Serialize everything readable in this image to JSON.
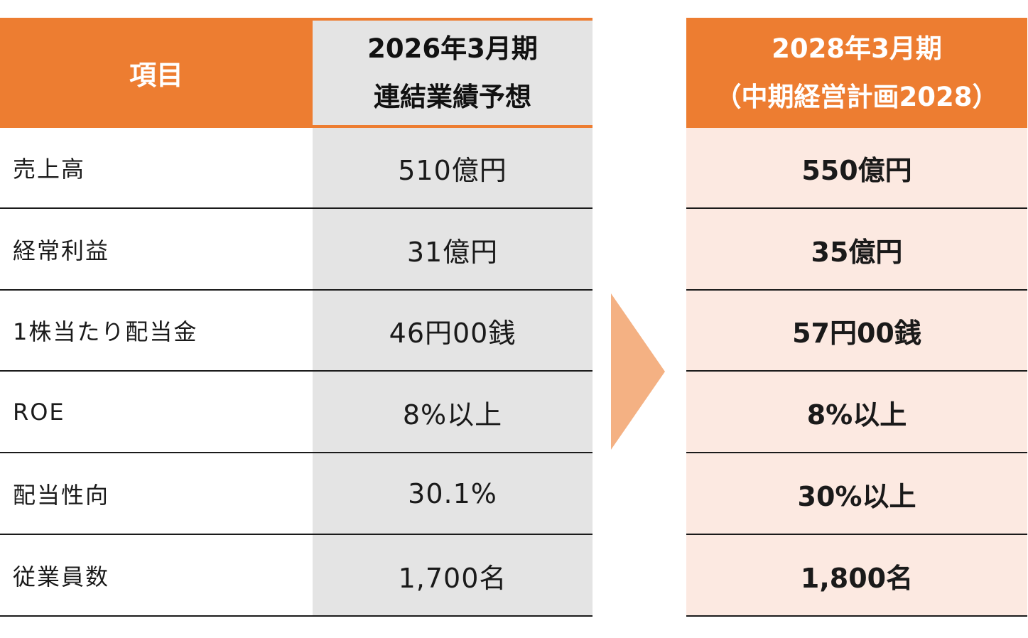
{
  "header": {
    "item": "項目",
    "current_line1": "2026年3月期",
    "current_line2": "連結業績予想",
    "plan_line1": "2028年3月期",
    "plan_line2": "（中期経営計画2028）"
  },
  "rows": [
    {
      "label": "売上高",
      "current": "510億円",
      "plan": "550億円"
    },
    {
      "label": "経常利益",
      "current": "31億円",
      "plan": "35億円"
    },
    {
      "label": "1株当たり配当金",
      "current": "46円00銭",
      "plan": "57円00銭"
    },
    {
      "label": "ROE",
      "current": "8%以上",
      "plan": "8%以上"
    },
    {
      "label": "配当性向",
      "current": "30.1%",
      "plan": "30%以上"
    },
    {
      "label": "従業員数",
      "current": "1,700名",
      "plan": "1,800名"
    }
  ],
  "colors": {
    "accent": "#ED7D31",
    "arrow": "#F4B183",
    "current_bg": "#E4E4E4",
    "plan_bg": "#FCE9E1"
  }
}
